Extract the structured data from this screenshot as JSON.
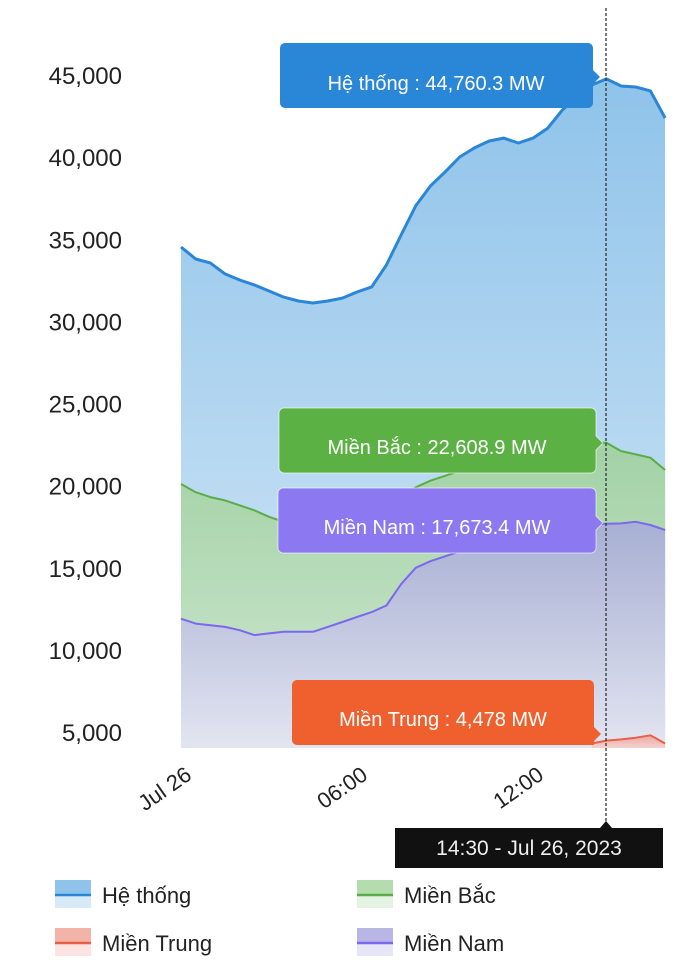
{
  "chart_data": {
    "type": "area",
    "title": "",
    "xlabel": "",
    "ylabel": "",
    "ylim": [
      4000,
      48000
    ],
    "y_ticks": [
      "45,000",
      "40,000",
      "35,000",
      "30,000",
      "25,000",
      "20,000",
      "15,000",
      "10,000",
      "5,000"
    ],
    "y_tick_values": [
      45000,
      40000,
      35000,
      30000,
      25000,
      20000,
      15000,
      10000,
      5000
    ],
    "x_ticks": [
      "Jul 26",
      "06:00",
      "12:00"
    ],
    "x_tick_hours": [
      0,
      6,
      12
    ],
    "x_hours_start": 0,
    "x_step_hours": 0.5,
    "series": [
      {
        "name": "Hệ thống",
        "color": "#2a86d6",
        "fill": "#8fc3ea",
        "values": [
          34530,
          33800,
          33560,
          32890,
          32520,
          32220,
          31850,
          31480,
          31240,
          31120,
          31240,
          31420,
          31790,
          32100,
          33430,
          35260,
          37030,
          38240,
          39100,
          40010,
          40560,
          40980,
          41160,
          40860,
          41160,
          41770,
          42870,
          43660,
          44390,
          44760.3,
          44330,
          44270,
          44030,
          42380
        ]
      },
      {
        "name": "Miền Bắc",
        "color": "#5aad45",
        "fill": "#b4dcae",
        "values": [
          20100,
          19600,
          19300,
          19100,
          18800,
          18500,
          18100,
          17800,
          17500,
          17300,
          17200,
          17300,
          17600,
          17900,
          18500,
          19300,
          19900,
          20300,
          20600,
          20900,
          21100,
          21300,
          21400,
          21500,
          21700,
          22000,
          22300,
          22500,
          22600,
          22608.9,
          22100,
          21900,
          21700,
          20950
        ]
      },
      {
        "name": "Miền Nam",
        "color": "#7b68ee",
        "fill": "#b9b6e6",
        "values": [
          11900,
          11600,
          11500,
          11400,
          11200,
          10900,
          11000,
          11100,
          11100,
          11100,
          11400,
          11700,
          12000,
          12300,
          12700,
          14000,
          15000,
          15400,
          15700,
          16000,
          16300,
          16600,
          16900,
          17100,
          17300,
          17500,
          17600,
          17700,
          17650,
          17673.4,
          17700,
          17800,
          17600,
          17300
        ]
      },
      {
        "name": "Miền Trung",
        "color": "#e8604a",
        "fill": "#f3b3a8",
        "values": [
          null,
          null,
          null,
          null,
          null,
          null,
          null,
          null,
          null,
          null,
          null,
          null,
          null,
          null,
          null,
          null,
          null,
          null,
          null,
          null,
          null,
          null,
          null,
          null,
          null,
          null,
          null,
          null,
          4300,
          4478,
          4550,
          4650,
          4800,
          4300
        ]
      }
    ],
    "legend_position": "bottom",
    "legend": [
      "Hệ thống",
      "Miền Bắc",
      "Miền Trung",
      "Miền Nam"
    ],
    "crosshair": {
      "index": 29,
      "label": "14:30 - Jul 26, 2023",
      "tooltips": {
        "he_thong": "Hệ thống : 44,760.3 MW",
        "mien_bac": "Miền Bắc : 22,608.9 MW",
        "mien_nam": "Miền Nam : 17,673.4 MW",
        "mien_trung": "Miền Trung : 4,478 MW"
      }
    }
  }
}
